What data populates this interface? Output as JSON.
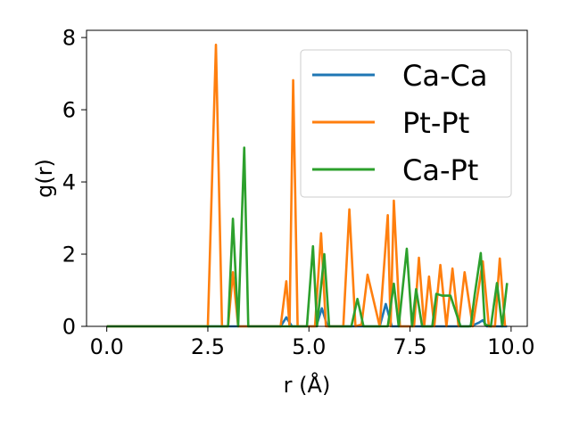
{
  "chart_data": {
    "type": "line",
    "title": "",
    "xlabel": "r (Å)",
    "ylabel": "g(r)",
    "xlim": [
      -0.5,
      10.4
    ],
    "ylim": [
      0,
      8.2
    ],
    "xticks": [
      0.0,
      2.5,
      5.0,
      7.5,
      10.0
    ],
    "xtick_labels": [
      "0.0",
      "2.5",
      "5.0",
      "7.5",
      "10.0"
    ],
    "yticks": [
      0,
      2,
      4,
      6,
      8
    ],
    "ytick_labels": [
      "0",
      "2",
      "4",
      "6",
      "8"
    ],
    "grid": false,
    "legend_position": "top-right",
    "series": [
      {
        "name": "Ca-Ca",
        "color": "#1f77b4",
        "x": [
          0.0,
          4.3,
          4.44,
          4.58,
          5.18,
          5.32,
          5.46,
          6.75,
          6.9,
          7.05,
          8.95,
          9.1,
          9.2,
          9.3,
          9.4,
          9.9
        ],
        "y": [
          0,
          0,
          0.25,
          0,
          0,
          0.5,
          0,
          0,
          0.62,
          0,
          0,
          0.05,
          0.1,
          0.17,
          0,
          0
        ]
      },
      {
        "name": "Pt-Pt",
        "color": "#ff7f0e",
        "x": [
          0.0,
          2.5,
          2.7,
          2.85,
          3.0,
          3.12,
          3.25,
          4.3,
          4.44,
          4.52,
          4.61,
          4.72,
          5.15,
          5.3,
          5.42,
          5.85,
          6.0,
          6.15,
          6.3,
          6.45,
          6.75,
          6.95,
          7.02,
          7.1,
          7.25,
          7.6,
          7.72,
          7.85,
          7.97,
          8.1,
          8.25,
          8.4,
          8.55,
          8.7,
          8.85,
          9.05,
          9.3,
          9.45,
          9.6,
          9.72,
          9.85
        ],
        "y": [
          0,
          0,
          7.8,
          0,
          0,
          1.5,
          0,
          0,
          1.25,
          0,
          6.82,
          0,
          0,
          2.58,
          0,
          0,
          3.24,
          0,
          0.05,
          1.43,
          0,
          3.08,
          0,
          3.48,
          0,
          0,
          1.9,
          0,
          1.38,
          0,
          1.7,
          0,
          1.6,
          0,
          1.5,
          0,
          1.8,
          0,
          0,
          1.88,
          0
        ]
      },
      {
        "name": "Ca-Pt",
        "color": "#2ca02c",
        "x": [
          0.0,
          3.0,
          3.12,
          3.25,
          3.4,
          3.5,
          4.95,
          5.1,
          5.2,
          5.38,
          5.5,
          6.05,
          6.2,
          6.35,
          6.95,
          7.1,
          7.22,
          7.42,
          7.55,
          7.65,
          7.8,
          8.05,
          8.15,
          8.3,
          8.5,
          8.75,
          8.9,
          9.0,
          9.1,
          9.25,
          9.35,
          9.5,
          9.65,
          9.78,
          9.9
        ],
        "y": [
          0,
          0,
          2.98,
          0,
          4.95,
          0,
          0,
          2.22,
          0,
          2.0,
          0,
          0,
          0.76,
          0,
          0,
          1.18,
          0,
          2.15,
          0,
          1.03,
          0,
          0,
          0.9,
          0.85,
          0.85,
          0,
          0,
          0,
          0.88,
          2.03,
          0.05,
          0,
          1.2,
          0,
          1.2
        ]
      }
    ]
  }
}
